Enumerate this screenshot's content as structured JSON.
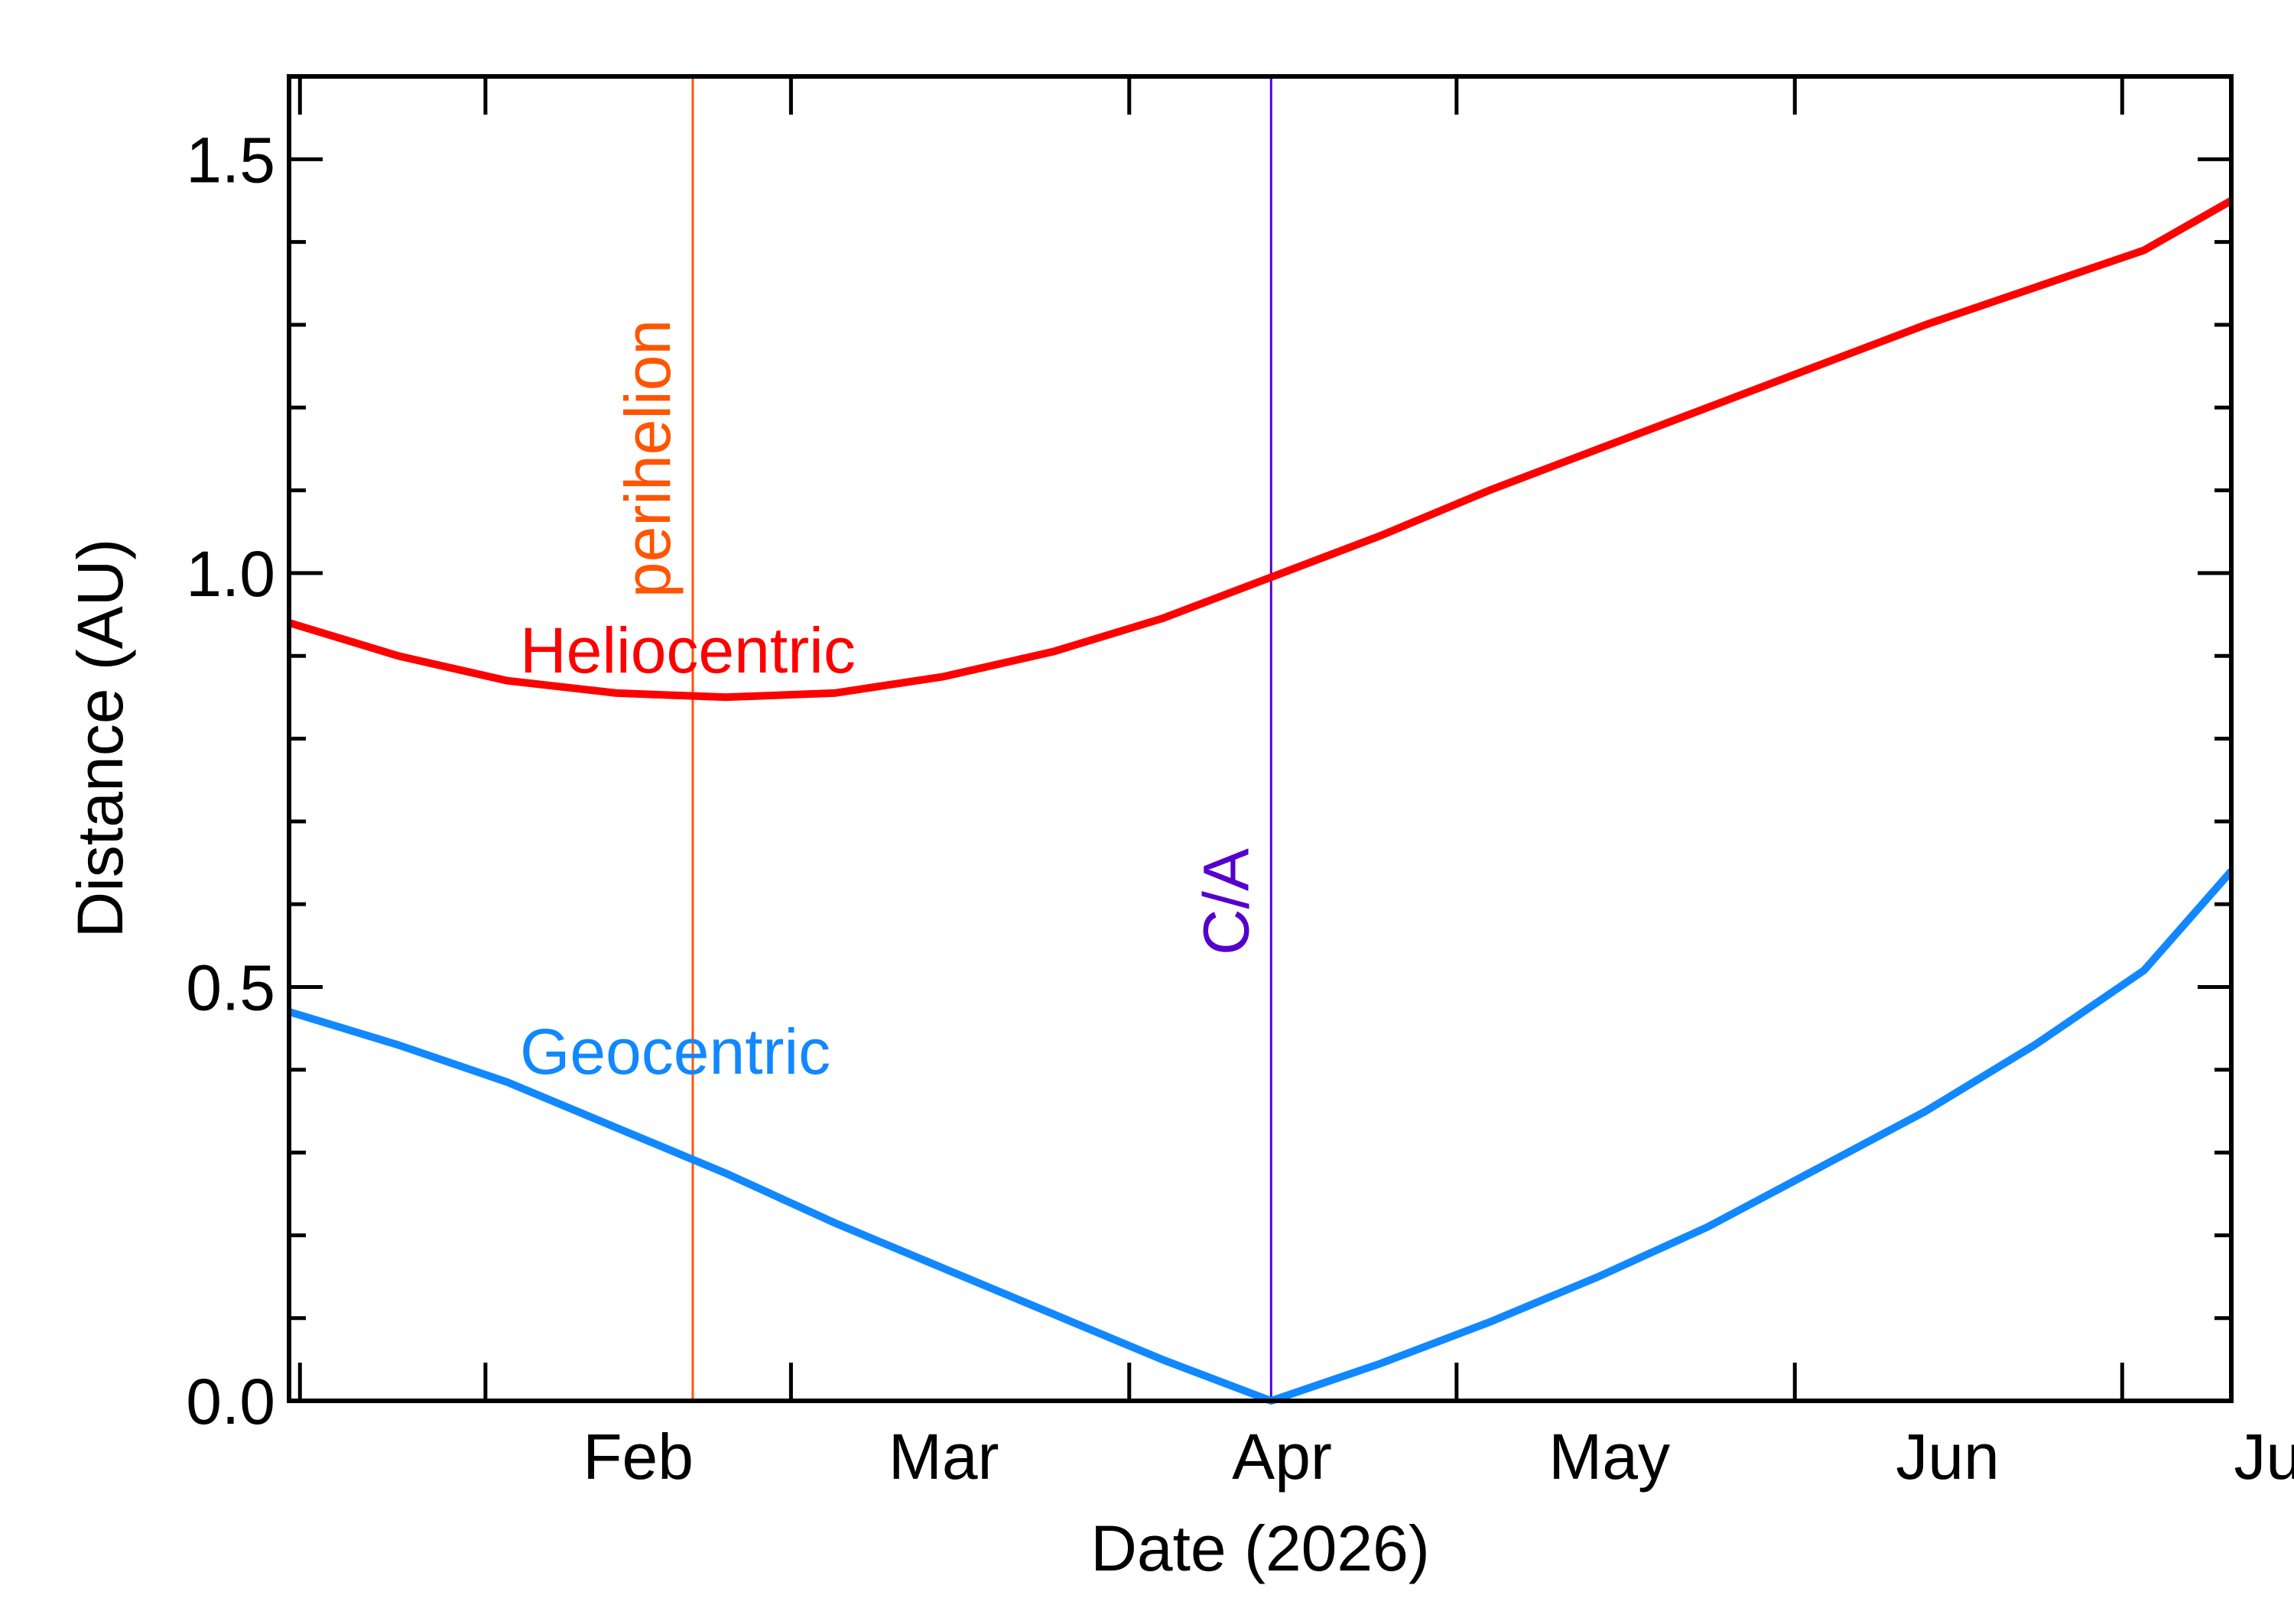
{
  "chart_data": {
    "type": "line",
    "xlabel": "Date (2026)",
    "ylabel": "Distance (AU)",
    "x_tick_labels": [
      {
        "date": "2026-02-01",
        "label": "Feb"
      },
      {
        "date": "2026-03-01",
        "label": "Mar"
      },
      {
        "date": "2026-04-01",
        "label": "Apr"
      },
      {
        "date": "2026-05-01",
        "label": "May"
      },
      {
        "date": "2026-06-01",
        "label": "Jun"
      },
      {
        "date": "2026-07-01",
        "label": "Jul"
      }
    ],
    "xlim": [
      "2026-01-14",
      "2026-07-11"
    ],
    "ylim": [
      0.0,
      1.6
    ],
    "y_tick_labels": [
      "0.0",
      "0.5",
      "1.0",
      "1.5"
    ],
    "y_major_ticks": [
      0.0,
      0.5,
      1.0,
      1.5
    ],
    "y_minor_step": 0.1,
    "grid": false,
    "colors": {
      "heliocentric": "#ff0000",
      "geocentric": "#1188ff",
      "perihelion": "#ff5500",
      "closest_approach": "#5500cc",
      "axis": "#000000"
    },
    "series": [
      {
        "name": "Heliocentric",
        "color": "#ff0000",
        "x": [
          "2026-01-14",
          "2026-01-24",
          "2026-02-03",
          "2026-02-13",
          "2026-02-23",
          "2026-03-05",
          "2026-03-15",
          "2026-03-25",
          "2026-04-04",
          "2026-04-14",
          "2026-04-24",
          "2026-05-04",
          "2026-05-14",
          "2026-05-24",
          "2026-06-03",
          "2026-06-13",
          "2026-06-23",
          "2026-07-03",
          "2026-07-11"
        ],
        "y": [
          0.94,
          0.9,
          0.87,
          0.855,
          0.85,
          0.855,
          0.875,
          0.905,
          0.945,
          0.995,
          1.045,
          1.1,
          1.15,
          1.2,
          1.25,
          1.3,
          1.345,
          1.39,
          1.45
        ]
      },
      {
        "name": "Geocentric",
        "color": "#1188ff",
        "x": [
          "2026-01-14",
          "2026-01-24",
          "2026-02-03",
          "2026-02-13",
          "2026-02-23",
          "2026-03-05",
          "2026-03-15",
          "2026-03-25",
          "2026-04-04",
          "2026-04-14",
          "2026-04-24",
          "2026-05-04",
          "2026-05-14",
          "2026-05-24",
          "2026-06-03",
          "2026-06-13",
          "2026-06-23",
          "2026-07-03",
          "2026-07-11"
        ],
        "y": [
          0.47,
          0.43,
          0.385,
          0.33,
          0.275,
          0.215,
          0.16,
          0.105,
          0.05,
          0.0,
          0.045,
          0.095,
          0.15,
          0.21,
          0.28,
          0.35,
          0.43,
          0.52,
          0.64
        ]
      }
    ],
    "annotations": [
      {
        "text": "perihelion",
        "date": "2026-02-20",
        "color": "#ff5500"
      },
      {
        "text": "C/A",
        "date": "2026-04-14",
        "color": "#5500cc"
      }
    ]
  }
}
